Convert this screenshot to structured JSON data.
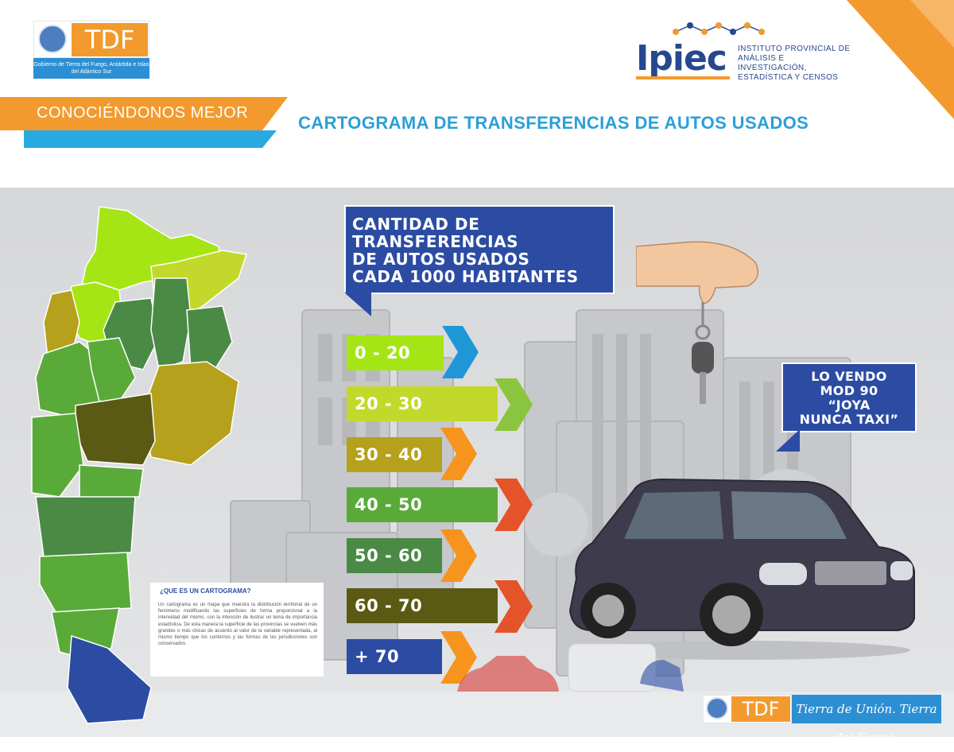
{
  "header": {
    "tdf_logo": {
      "letters": "TDF",
      "subtitle": "Gobierno de Tierra del Fuego, Antártida e Islas del Atlántico Sur"
    },
    "ipiec_logo": {
      "word": "Ipiec",
      "lines": [
        "INSTITUTO PROVINCIAL DE",
        "ANÁLISIS E INVESTIGACIÓN,",
        "ESTADÍSTICA Y CENSOS"
      ]
    },
    "section_label": "CONOCIÉNDONOS MEJOR",
    "title": "CARTOGRAMA DE TRANSFERENCIAS DE AUTOS USADOS"
  },
  "key_callout": {
    "lines": [
      "CANTIDAD DE",
      "TRANSFERENCIAS",
      "DE AUTOS USADOS",
      "CADA 1000 HABITANTES"
    ]
  },
  "legend": [
    {
      "label": "0 - 20",
      "color": "#a6e515",
      "arrow": "#1f97d7"
    },
    {
      "label": "20 - 30",
      "color": "#c2d92b",
      "arrow": "#8bc53f"
    },
    {
      "label": "30 - 40",
      "color": "#b5a11b",
      "arrow": "#f7941d"
    },
    {
      "label": "40 - 50",
      "color": "#5aaa3a",
      "arrow": "#e5532a"
    },
    {
      "label": "50 - 60",
      "color": "#4a8a45",
      "arrow": "#f7941d"
    },
    {
      "label": "60 - 70",
      "color": "#5b5a14",
      "arrow": "#e5532a"
    },
    {
      "label": "+ 70",
      "color": "#2c4ca3",
      "arrow": "#f7941d"
    }
  ],
  "sale_callout": {
    "lines": [
      "LO VENDO",
      "MOD 90",
      "“JOYA",
      "NUNCA TAXI”"
    ]
  },
  "info": {
    "title": "¿QUE ES UN CARTOGRAMA?",
    "text": "Un cartograma es un mapa que muestra la distribución territorial de un fenómeno modificando las superficies de forma proporcional a la intensidad del mismo, con la intención de ilustrar un tema de importancia estadística. De esta manera la superficie de las provincias se vuelven más grandes o más chicas de acuerdo al valor de la variable representada, al mismo tiempo que los contornos y las formas de las jurisdicciones son conservados."
  },
  "footer": {
    "tdf_letters": "TDF",
    "slogan": "Tierra de Unión. Tierra del Fuego."
  },
  "colors": {
    "orange": "#f39a2e",
    "light_blue": "#29a9e1",
    "navy": "#2c4ca3",
    "title_blue": "#2c9fd8"
  }
}
